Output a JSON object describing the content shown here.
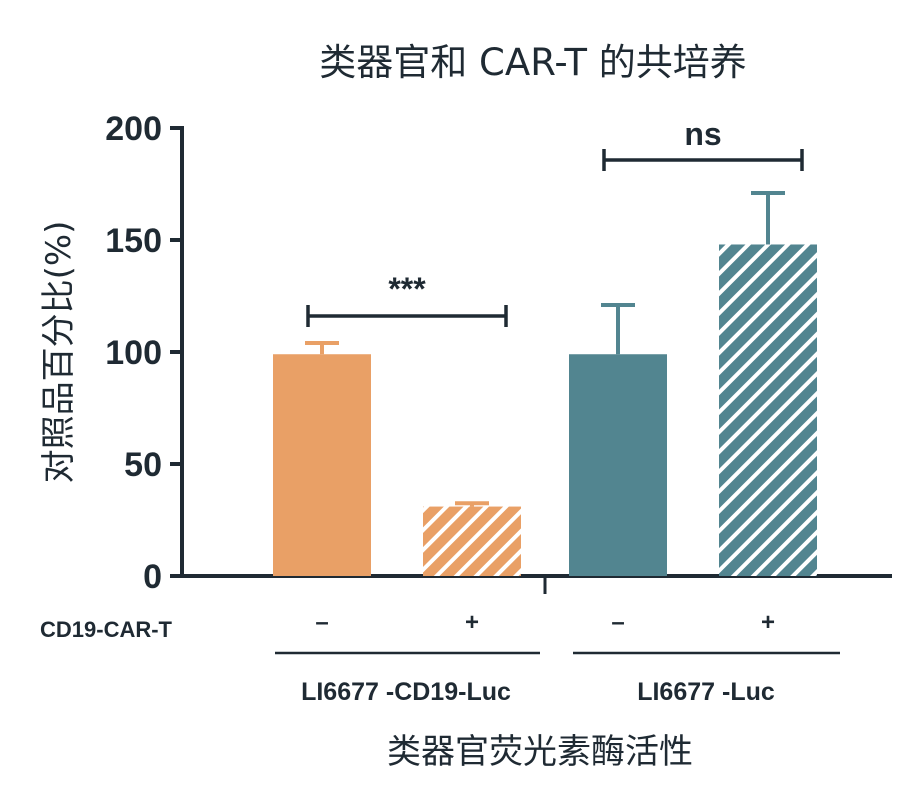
{
  "chart_data": {
    "type": "bar",
    "title": "类器官和 CAR-T 的共培养",
    "ylabel": "对照品百分比(%)",
    "xlabel": "类器官荧光素酶活性",
    "ylim": [
      0,
      200
    ],
    "yticks": [
      0,
      50,
      100,
      150,
      200
    ],
    "treatment_row_label": "CD19-CAR-T",
    "groups": [
      {
        "label": "LI6677 -CD19-Luc",
        "significance": "***"
      },
      {
        "label": "LI6677 -Luc",
        "significance": "ns"
      }
    ],
    "bars": [
      {
        "group": 0,
        "treatment": "–",
        "value": 99,
        "error": 5,
        "color": "#E9A066",
        "hatched": false
      },
      {
        "group": 0,
        "treatment": "+",
        "value": 31,
        "error": 1.5,
        "color": "#E9A066",
        "hatched": true
      },
      {
        "group": 1,
        "treatment": "–",
        "value": 99,
        "error": 22,
        "color": "#528590",
        "hatched": false
      },
      {
        "group": 1,
        "treatment": "+",
        "value": 148,
        "error": 23,
        "color": "#528590",
        "hatched": true
      }
    ],
    "axis_color": "#1f2a33",
    "grid": false,
    "legend": "none"
  }
}
